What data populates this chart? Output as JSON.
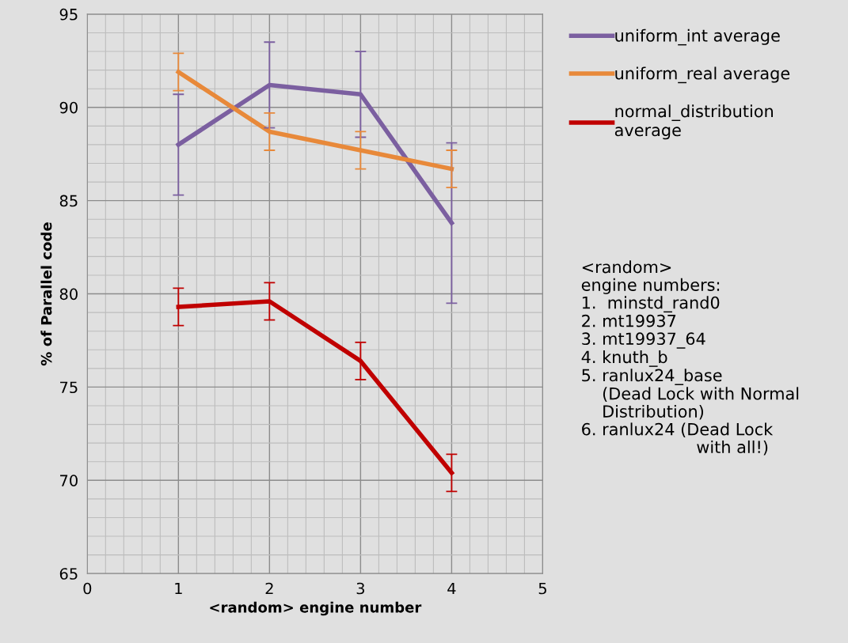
{
  "chart_data": {
    "type": "line",
    "xlabel": "<random> engine number",
    "ylabel": "% of Parallel code",
    "x": [
      1,
      2,
      3,
      4
    ],
    "series": [
      {
        "name": "uniform_int average",
        "color": "#7b5fa0",
        "values": [
          88.0,
          91.2,
          90.7,
          83.8
        ],
        "errors": [
          2.7,
          2.3,
          2.3,
          4.3
        ]
      },
      {
        "name": "uniform_real average",
        "color": "#e8893a",
        "values": [
          91.9,
          88.7,
          87.7,
          86.7
        ],
        "errors": [
          1.0,
          1.0,
          1.0,
          1.0
        ]
      },
      {
        "name": "normal_distribution\naverage",
        "color": "#c00000",
        "values": [
          79.3,
          79.6,
          76.4,
          70.4
        ],
        "errors": [
          1.0,
          1.0,
          1.0,
          1.0
        ]
      }
    ],
    "xlim": [
      0,
      5
    ],
    "xticks": [
      0,
      1,
      2,
      3,
      4,
      5
    ],
    "ylim": [
      65,
      95
    ],
    "yticks": [
      65,
      70,
      75,
      80,
      85,
      90,
      95
    ],
    "grid": true,
    "legend": "right",
    "marker": "none",
    "line_style": "solid",
    "annotations": [
      "<random>\nengine numbers:\n1.  minstd_rand0\n2. mt19937\n3. mt19937_64\n4. knuth_b\n5. ranlux24_base\n    (Dead Lock with Normal\n    Distribution)\n6. ranlux24 (Dead Lock\n                      with all!)"
    ]
  }
}
